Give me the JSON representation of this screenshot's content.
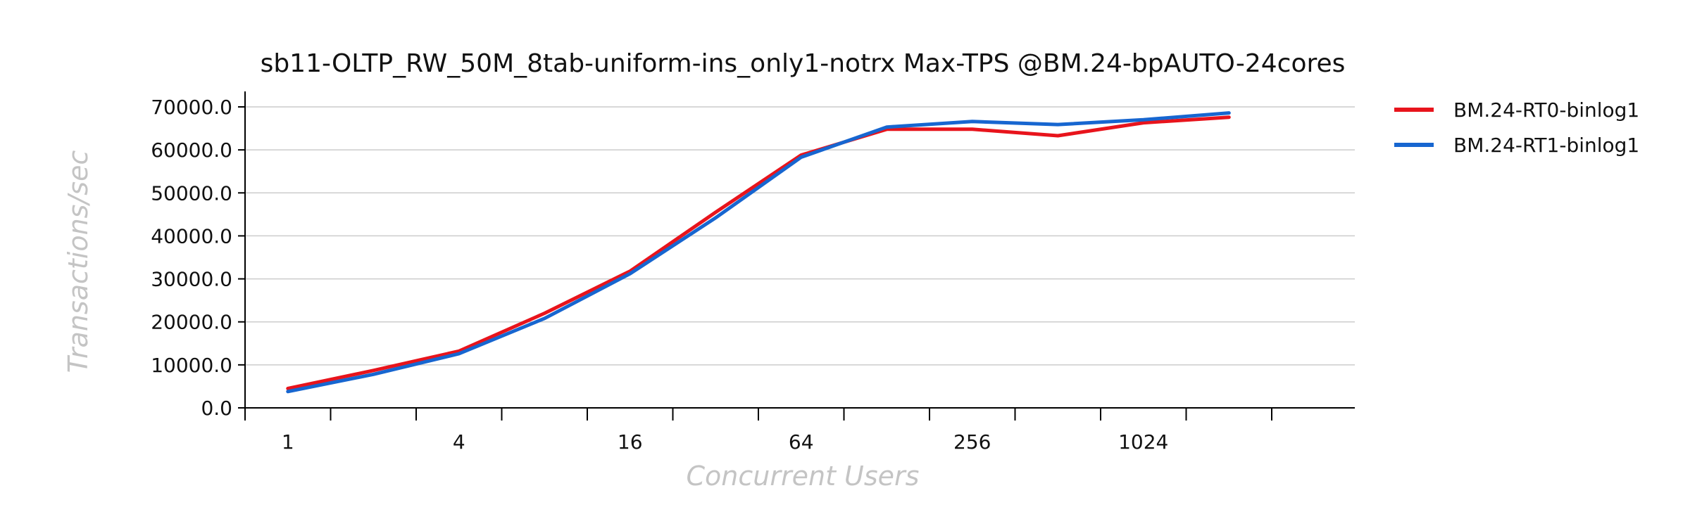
{
  "chart_data": {
    "type": "line",
    "title": "sb11-OLTP_RW_50M_8tab-uniform-ins_only1-notrx Max-TPS @BM.24-bpAUTO-24cores",
    "xlabel": "Concurrent Users",
    "ylabel": "Transactions/sec",
    "x": [
      1,
      2,
      4,
      8,
      16,
      32,
      64,
      128,
      256,
      512,
      1024,
      2048
    ],
    "x_scale": "log2",
    "x_ticks": [
      "1",
      "4",
      "16",
      "64",
      "256",
      "1024"
    ],
    "y_ticks": [
      "0.0",
      "10000.0",
      "20000.0",
      "30000.0",
      "40000.0",
      "50000.0",
      "60000.0",
      "70000.0"
    ],
    "ylim": [
      0,
      70000
    ],
    "grid": true,
    "legend_position": "right",
    "series": [
      {
        "name": "BM.24-RT0-binlog1",
        "color": "#e8141c",
        "values": [
          4500,
          8700,
          13200,
          22000,
          31800,
          45500,
          58800,
          64800,
          64800,
          63300,
          66300,
          67600
        ]
      },
      {
        "name": "BM.24-RT1-binlog1",
        "color": "#1766d0",
        "values": [
          3800,
          7800,
          12600,
          20800,
          31200,
          44200,
          58300,
          65300,
          66600,
          65900,
          67000,
          68600
        ]
      }
    ]
  }
}
